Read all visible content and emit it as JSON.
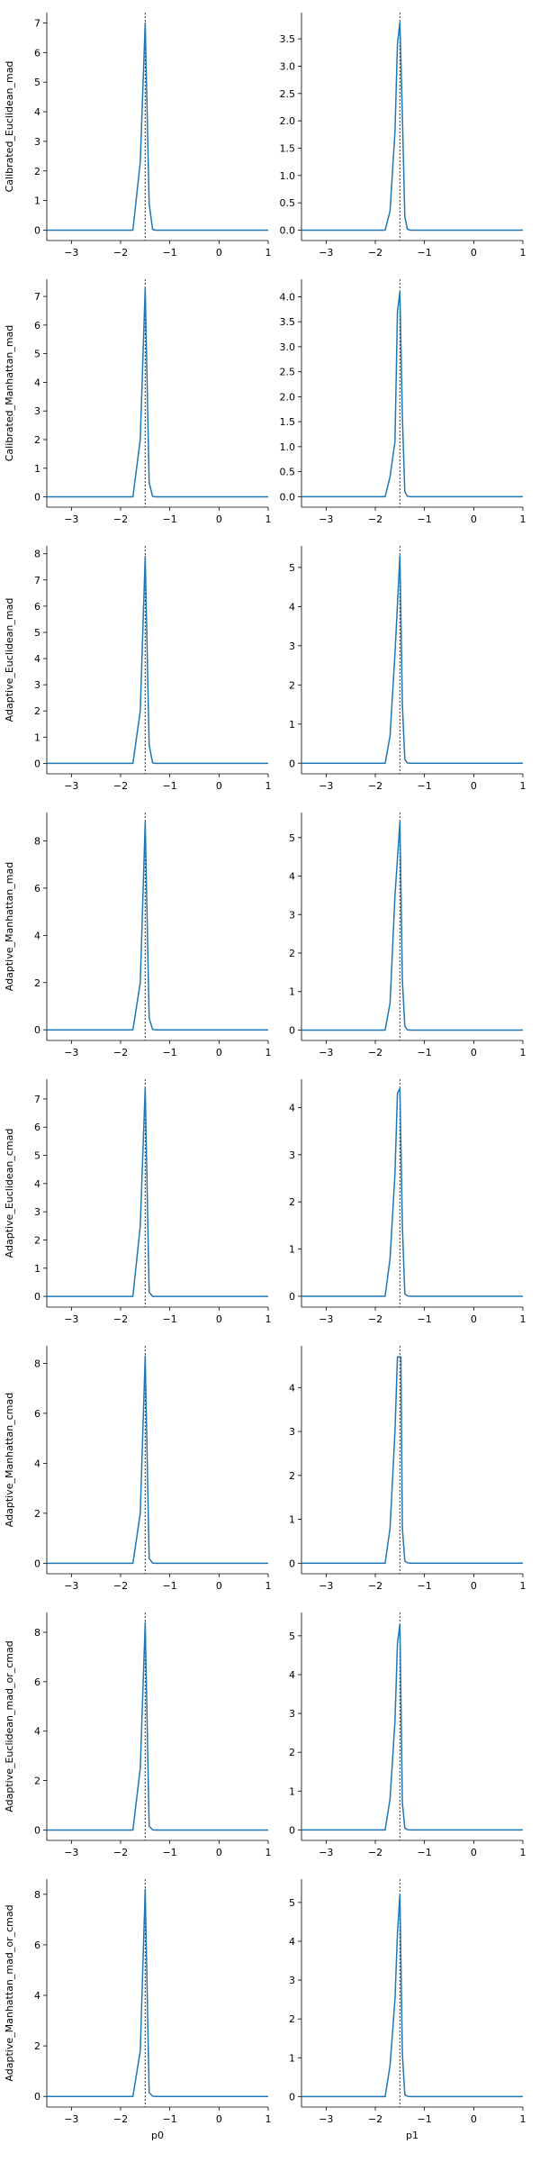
{
  "figure": {
    "line_color": "#1f77b4",
    "ref_color": "#333333"
  },
  "chart_data": [
    {
      "type": "line",
      "row": 0,
      "col": 0,
      "ylabel": "Calibrated_Euclidean_mad",
      "xlabel": "",
      "xlim": [
        -3.5,
        1
      ],
      "ylim": [
        -0.35,
        7.35
      ],
      "xticks": [
        -3,
        -2,
        -1,
        0,
        1
      ],
      "yticks": [
        0,
        1,
        2,
        3,
        4,
        5,
        6,
        7
      ],
      "ref_x": -1.5,
      "grid": false,
      "x": [
        -3.5,
        -1.75,
        -1.6,
        -1.5,
        -1.42,
        -1.35,
        -1.3,
        1
      ],
      "y": [
        0,
        0,
        2.3,
        7.0,
        0.9,
        0.03,
        0,
        0
      ]
    },
    {
      "type": "line",
      "row": 0,
      "col": 1,
      "ylabel": "",
      "xlabel": "",
      "xlim": [
        -3.5,
        1
      ],
      "ylim": [
        -0.19,
        3.98
      ],
      "xticks": [
        -3,
        -2,
        -1,
        0,
        1
      ],
      "yticks": [
        0,
        0.5,
        1,
        1.5,
        2,
        2.5,
        3,
        3.5
      ],
      "ytick_labels": [
        "0.0",
        "0.5",
        "1.0",
        "1.5",
        "2.0",
        "2.5",
        "3.0",
        "3.5"
      ],
      "ref_x": -1.5,
      "grid": false,
      "x": [
        -3.5,
        -1.8,
        -1.7,
        -1.6,
        -1.55,
        -1.5,
        -1.45,
        -1.4,
        -1.35,
        -1.3,
        1
      ],
      "y": [
        0,
        0,
        0.35,
        1.8,
        3.4,
        3.8,
        2.1,
        0.25,
        0.02,
        0,
        0
      ]
    },
    {
      "type": "line",
      "row": 1,
      "col": 0,
      "ylabel": "Calibrated_Manhattan_mad",
      "xlabel": "",
      "xlim": [
        -3.5,
        1
      ],
      "ylim": [
        -0.36,
        7.6
      ],
      "xticks": [
        -3,
        -2,
        -1,
        0,
        1
      ],
      "yticks": [
        0,
        1,
        2,
        3,
        4,
        5,
        6,
        7
      ],
      "ref_x": -1.5,
      "grid": false,
      "x": [
        -3.5,
        -1.75,
        -1.6,
        -1.5,
        -1.42,
        -1.35,
        -1.3,
        1
      ],
      "y": [
        0,
        0,
        2.0,
        7.3,
        0.5,
        0.02,
        0,
        0
      ]
    },
    {
      "type": "line",
      "row": 1,
      "col": 1,
      "ylabel": "",
      "xlabel": "",
      "xlim": [
        -3.5,
        1
      ],
      "ylim": [
        -0.21,
        4.35
      ],
      "xticks": [
        -3,
        -2,
        -1,
        0,
        1
      ],
      "yticks": [
        0,
        0.5,
        1,
        1.5,
        2,
        2.5,
        3,
        3.5,
        4
      ],
      "ytick_labels": [
        "0.0",
        "0.5",
        "1.0",
        "1.5",
        "2.0",
        "2.5",
        "3.0",
        "3.5",
        "4.0"
      ],
      "ref_x": -1.5,
      "grid": false,
      "x": [
        -3.5,
        -1.8,
        -1.7,
        -1.6,
        -1.55,
        -1.5,
        -1.45,
        -1.4,
        -1.35,
        -1.3,
        1
      ],
      "y": [
        0,
        0,
        0.4,
        1.1,
        3.7,
        4.1,
        1.6,
        0.1,
        0.01,
        0,
        0
      ]
    },
    {
      "type": "line",
      "row": 2,
      "col": 0,
      "ylabel": "Adaptive_Euclidean_mad",
      "xlabel": "",
      "xlim": [
        -3.5,
        1
      ],
      "ylim": [
        -0.4,
        8.3
      ],
      "xticks": [
        -3,
        -2,
        -1,
        0,
        1
      ],
      "yticks": [
        0,
        1,
        2,
        3,
        4,
        5,
        6,
        7,
        8
      ],
      "ref_x": -1.5,
      "grid": false,
      "x": [
        -3.5,
        -1.75,
        -1.6,
        -1.5,
        -1.42,
        -1.35,
        -1.3,
        1
      ],
      "y": [
        0,
        0,
        2.0,
        7.9,
        0.7,
        0.02,
        0,
        0
      ]
    },
    {
      "type": "line",
      "row": 2,
      "col": 1,
      "ylabel": "",
      "xlabel": "",
      "xlim": [
        -3.5,
        1
      ],
      "ylim": [
        -0.27,
        5.55
      ],
      "xticks": [
        -3,
        -2,
        -1,
        0,
        1
      ],
      "yticks": [
        0,
        1,
        2,
        3,
        4,
        5
      ],
      "ref_x": -1.5,
      "grid": false,
      "x": [
        -3.5,
        -1.8,
        -1.7,
        -1.6,
        -1.5,
        -1.45,
        -1.4,
        -1.35,
        -1.3,
        1
      ],
      "y": [
        0,
        0,
        0.7,
        2.8,
        5.3,
        1.5,
        0.1,
        0.01,
        0,
        0
      ]
    },
    {
      "type": "line",
      "row": 3,
      "col": 0,
      "ylabel": "Adaptive_Manhattan_mad",
      "xlabel": "",
      "xlim": [
        -3.5,
        1
      ],
      "ylim": [
        -0.45,
        9.2
      ],
      "xticks": [
        -3,
        -2,
        -1,
        0,
        1
      ],
      "yticks": [
        0,
        2,
        4,
        6,
        8
      ],
      "ref_x": -1.5,
      "grid": false,
      "x": [
        -3.5,
        -1.75,
        -1.6,
        -1.5,
        -1.42,
        -1.35,
        -1.3,
        1
      ],
      "y": [
        0,
        0,
        2.0,
        8.8,
        0.5,
        0.02,
        0,
        0
      ]
    },
    {
      "type": "line",
      "row": 3,
      "col": 1,
      "ylabel": "",
      "xlabel": "",
      "xlim": [
        -3.5,
        1
      ],
      "ylim": [
        -0.27,
        5.65
      ],
      "xticks": [
        -3,
        -2,
        -1,
        0,
        1
      ],
      "yticks": [
        0,
        1,
        2,
        3,
        4,
        5
      ],
      "ref_x": -1.5,
      "grid": false,
      "x": [
        -3.5,
        -1.8,
        -1.7,
        -1.6,
        -1.5,
        -1.45,
        -1.4,
        -1.35,
        -1.3,
        1
      ],
      "y": [
        0,
        0,
        0.7,
        3.5,
        5.4,
        1.3,
        0.1,
        0.01,
        0,
        0
      ]
    },
    {
      "type": "line",
      "row": 4,
      "col": 0,
      "ylabel": "Adaptive_Euclidean_cmad",
      "xlabel": "",
      "xlim": [
        -3.5,
        1
      ],
      "ylim": [
        -0.38,
        7.7
      ],
      "xticks": [
        -3,
        -2,
        -1,
        0,
        1
      ],
      "yticks": [
        0,
        1,
        2,
        3,
        4,
        5,
        6,
        7
      ],
      "ref_x": -1.5,
      "grid": false,
      "x": [
        -3.5,
        -1.75,
        -1.6,
        -1.5,
        -1.42,
        -1.35,
        1
      ],
      "y": [
        0,
        0,
        2.5,
        7.4,
        0.15,
        0,
        0
      ]
    },
    {
      "type": "line",
      "row": 4,
      "col": 1,
      "ylabel": "",
      "xlabel": "",
      "xlim": [
        -3.5,
        1
      ],
      "ylim": [
        -0.23,
        4.6
      ],
      "xticks": [
        -3,
        -2,
        -1,
        0,
        1
      ],
      "yticks": [
        0,
        1,
        2,
        3,
        4
      ],
      "ref_x": -1.5,
      "grid": false,
      "x": [
        -3.5,
        -1.8,
        -1.7,
        -1.6,
        -1.55,
        -1.5,
        -1.45,
        -1.4,
        -1.35,
        -1.3,
        1
      ],
      "y": [
        0,
        0,
        0.8,
        2.6,
        4.3,
        4.4,
        1.5,
        0.05,
        0.01,
        0,
        0
      ]
    },
    {
      "type": "line",
      "row": 5,
      "col": 0,
      "ylabel": "Adaptive_Manhattan_cmad",
      "xlabel": "",
      "xlim": [
        -3.5,
        1
      ],
      "ylim": [
        -0.42,
        8.7
      ],
      "xticks": [
        -3,
        -2,
        -1,
        0,
        1
      ],
      "yticks": [
        0,
        2,
        4,
        6,
        8
      ],
      "ref_x": -1.5,
      "grid": false,
      "x": [
        -3.5,
        -1.75,
        -1.6,
        -1.5,
        -1.42,
        -1.35,
        -1.3,
        1
      ],
      "y": [
        0,
        0,
        2.0,
        8.3,
        0.2,
        0.01,
        0,
        0
      ]
    },
    {
      "type": "line",
      "row": 5,
      "col": 1,
      "ylabel": "",
      "xlabel": "",
      "xlim": [
        -3.5,
        1
      ],
      "ylim": [
        -0.24,
        4.95
      ],
      "xticks": [
        -3,
        -2,
        -1,
        0,
        1
      ],
      "yticks": [
        0,
        1,
        2,
        3,
        4
      ],
      "ref_x": -1.5,
      "grid": false,
      "x": [
        -3.5,
        -1.8,
        -1.7,
        -1.6,
        -1.55,
        -1.48,
        -1.45,
        -1.4,
        -1.35,
        -1.3,
        1
      ],
      "y": [
        0,
        0,
        0.8,
        3.0,
        4.7,
        4.7,
        0.8,
        0.05,
        0.01,
        0,
        0
      ]
    },
    {
      "type": "line",
      "row": 6,
      "col": 0,
      "ylabel": "Adaptive_Euclidean_mad_or_cmad",
      "xlabel": "",
      "xlim": [
        -3.5,
        1
      ],
      "ylim": [
        -0.42,
        8.8
      ],
      "xticks": [
        -3,
        -2,
        -1,
        0,
        1
      ],
      "yticks": [
        0,
        2,
        4,
        6,
        8
      ],
      "ref_x": -1.5,
      "grid": false,
      "x": [
        -3.5,
        -1.75,
        -1.6,
        -1.5,
        -1.42,
        -1.35,
        -1.3,
        1
      ],
      "y": [
        0,
        0,
        2.5,
        8.4,
        0.15,
        0.01,
        0,
        0
      ]
    },
    {
      "type": "line",
      "row": 6,
      "col": 1,
      "ylabel": "",
      "xlabel": "",
      "xlim": [
        -3.5,
        1
      ],
      "ylim": [
        -0.27,
        5.6
      ],
      "xticks": [
        -3,
        -2,
        -1,
        0,
        1
      ],
      "yticks": [
        0,
        1,
        2,
        3,
        4,
        5
      ],
      "ref_x": -1.5,
      "grid": false,
      "x": [
        -3.5,
        -1.8,
        -1.7,
        -1.6,
        -1.55,
        -1.5,
        -1.45,
        -1.4,
        -1.35,
        -1.3,
        1
      ],
      "y": [
        0,
        0,
        0.8,
        2.8,
        4.8,
        5.3,
        0.7,
        0.05,
        0.01,
        0,
        0
      ]
    },
    {
      "type": "line",
      "row": 7,
      "col": 0,
      "ylabel": "Adaptive_Manhattan_mad_or_cmad",
      "xlabel": "p0",
      "xlim": [
        -3.5,
        1
      ],
      "ylim": [
        -0.42,
        8.6
      ],
      "xticks": [
        -3,
        -2,
        -1,
        0,
        1
      ],
      "yticks": [
        0,
        2,
        4,
        6,
        8
      ],
      "ref_x": -1.5,
      "grid": false,
      "x": [
        -3.5,
        -1.75,
        -1.6,
        -1.5,
        -1.42,
        -1.35,
        -1.3,
        1
      ],
      "y": [
        0,
        0,
        1.8,
        8.2,
        0.15,
        0.01,
        0,
        0
      ]
    },
    {
      "type": "line",
      "row": 7,
      "col": 1,
      "ylabel": "",
      "xlabel": "p1",
      "xlim": [
        -3.5,
        1
      ],
      "ylim": [
        -0.27,
        5.6
      ],
      "xticks": [
        -3,
        -2,
        -1,
        0,
        1
      ],
      "yticks": [
        0,
        1,
        2,
        3,
        4,
        5
      ],
      "ref_x": -1.5,
      "grid": false,
      "x": [
        -3.5,
        -1.8,
        -1.7,
        -1.6,
        -1.55,
        -1.5,
        -1.45,
        -1.4,
        -1.35,
        -1.3,
        1
      ],
      "y": [
        0,
        0,
        0.8,
        2.5,
        4.2,
        5.2,
        1.1,
        0.05,
        0.01,
        0,
        0
      ]
    }
  ]
}
